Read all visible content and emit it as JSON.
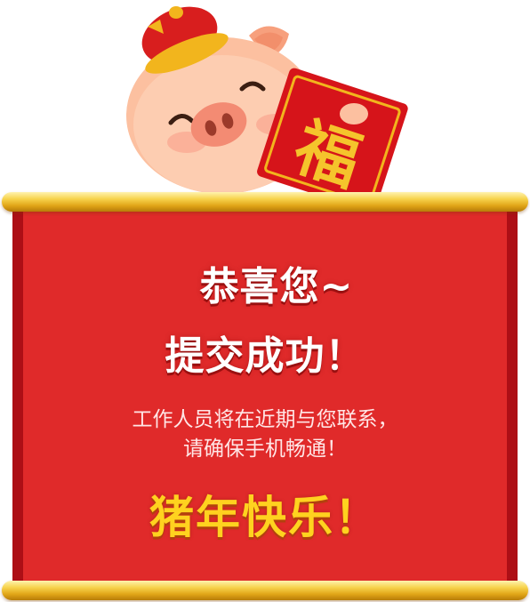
{
  "colors": {
    "banner_red": "#e02a2a",
    "banner_edge": "#ad0f16",
    "rod_gold": "#f7d34c",
    "greeting_yellow": "#ffd21f"
  },
  "mascot": {
    "icon": "pig-mascot-icon",
    "envelope_char": "福"
  },
  "content": {
    "title_line1": "恭喜您~",
    "title_line2": "提交成功！",
    "message_line1": "工作人员将在近期与您联系，",
    "message_line2": "请确保手机畅通！",
    "greeting": "猪年快乐！"
  }
}
